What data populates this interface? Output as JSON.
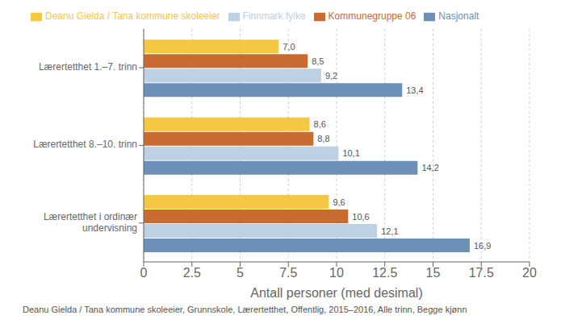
{
  "chart_data": {
    "type": "bar",
    "orientation": "horizontal",
    "categories": [
      "Lærertetthet 1.–7. trinn",
      "Lærertetthet 8.–10. trinn",
      "Lærertetthet i ordinær\nundervisning"
    ],
    "series": [
      {
        "name": "Deanu Gielda / Tana kommune skoleeier",
        "color": "#F5C842",
        "values": [
          7.0,
          8.6,
          9.6
        ],
        "value_labels": [
          "7,0",
          "8,6",
          "9,6"
        ]
      },
      {
        "name": "Kommunegruppe 06",
        "color": "#C96A30",
        "values": [
          8.5,
          8.8,
          10.6
        ],
        "value_labels": [
          "8,5",
          "8,8",
          "10,6"
        ]
      },
      {
        "name": "Finnmark fylke",
        "color": "#BDD0E4",
        "values": [
          9.2,
          10.1,
          12.1
        ],
        "value_labels": [
          "9,2",
          "10,1",
          "12,1"
        ]
      },
      {
        "name": "Nasjonalt",
        "color": "#6B8FB5",
        "values": [
          13.4,
          14.2,
          16.9
        ],
        "value_labels": [
          "13,4",
          "14,2",
          "16,9"
        ]
      }
    ],
    "xlabel": "Antall personer (med desimal)",
    "xlim": [
      0,
      20
    ],
    "xticks": [
      0,
      2.5,
      5,
      7.5,
      10,
      12.5,
      15,
      17.5,
      20
    ],
    "grid": true,
    "legend": "upper left",
    "data_labels": true,
    "footer": "Deanu Gielda / Tana kommune skoleeier, Grunnskole, Lærertetthet, Offentlig, 2015–2016, Alle trinn, Begge kjønn"
  }
}
